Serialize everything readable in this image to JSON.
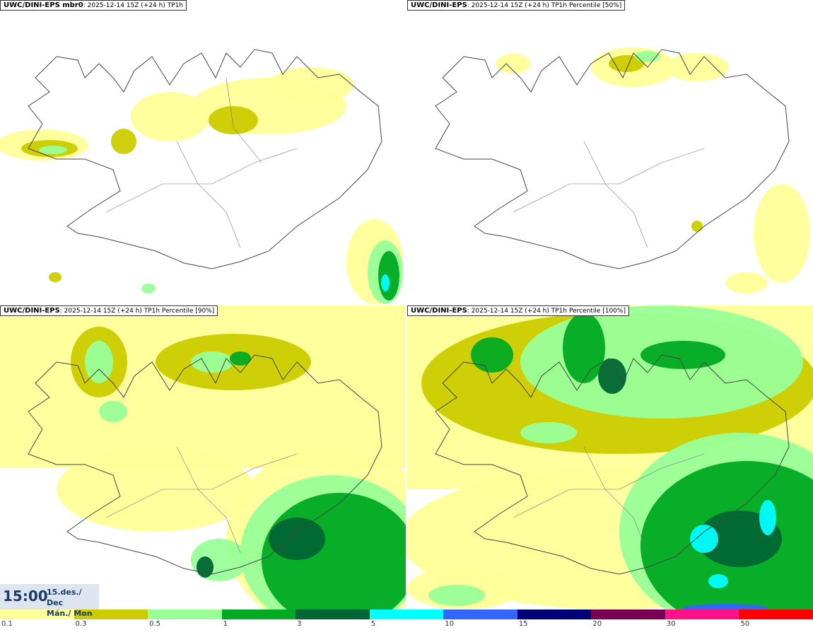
{
  "panels": [
    {
      "model": "UWC/DINI-EPS",
      "suffix": " mbr0",
      "info": ": 2025-12-14 15Z (+24 h) TP1h"
    },
    {
      "model": "UWC/DINI-EPS",
      "suffix": "",
      "info": ": 2025-12-14 15Z (+24 h) TP1h Percentile [50%]"
    },
    {
      "model": "UWC/DINI-EPS",
      "suffix": "",
      "info": ": 2025-12-14 15Z (+24 h) TP1h Percentile [90%]"
    },
    {
      "model": "UWC/DINI-EPS",
      "suffix": "",
      "info": ": 2025-12-14 15Z (+24 h) TP1h Percentile [100%]"
    }
  ],
  "time": {
    "clock": "15:00",
    "date_line": "15.des./ Dec",
    "day_line": "Mán./ Mon"
  },
  "legend": {
    "ticks": [
      "0.1",
      "0.3",
      "0.5",
      "1",
      "3",
      "5",
      "10",
      "15",
      "20",
      "30",
      "50"
    ],
    "colors": [
      "#ffff99",
      "#cccc00",
      "#99ff99",
      "#00aa22",
      "#006633",
      "#00ffff",
      "#3366ff",
      "#000077",
      "#770055",
      "#ff1188",
      "#ff0000"
    ]
  },
  "map_colors": {
    "land_outline": "#444444",
    "rivers": "#777777"
  }
}
